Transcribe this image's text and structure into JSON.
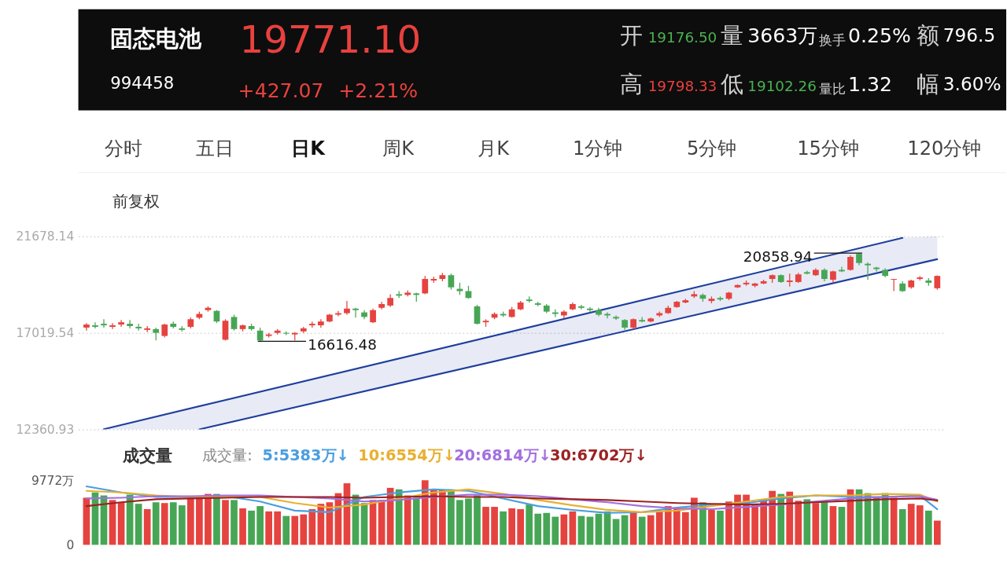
{
  "chart_data": [
    {
      "type": "candlestick",
      "title": "固态电池",
      "subtitle": "994458",
      "categories": [
        null,
        null,
        null,
        null,
        null,
        null,
        null,
        null,
        null,
        null,
        null,
        null,
        null,
        null,
        null,
        null,
        null,
        null,
        null,
        null,
        null,
        null,
        null,
        null,
        null,
        null,
        null,
        null,
        null,
        null,
        null,
        null,
        null,
        null,
        null,
        null,
        null,
        null,
        null,
        null,
        null,
        null,
        null,
        null,
        null,
        null,
        null,
        null,
        null,
        null,
        null,
        null,
        null,
        null,
        null,
        null,
        null,
        null,
        null,
        null,
        null,
        null,
        null,
        null,
        null,
        null,
        null,
        null,
        null,
        null,
        null,
        null,
        null,
        null,
        null,
        null,
        null,
        null,
        null,
        null,
        null,
        null,
        null,
        null,
        null,
        null,
        null,
        null,
        null,
        null,
        null,
        null,
        null,
        null,
        null,
        null,
        null,
        null,
        null
      ],
      "ohlc": [
        [
          17276,
          17496,
          17130,
          17423
        ],
        [
          17386,
          17533,
          17240,
          17313
        ],
        [
          17460,
          17680,
          17276,
          17386
        ],
        [
          17313,
          17496,
          17203,
          17386
        ],
        [
          17423,
          17643,
          17313,
          17533
        ],
        [
          17460,
          17643,
          17240,
          17350
        ],
        [
          17313,
          17460,
          17130,
          17240
        ],
        [
          17166,
          17350,
          17056,
          17240
        ],
        [
          17203,
          17276,
          16653,
          17020
        ],
        [
          16873,
          17460,
          16799,
          17423
        ],
        [
          17460,
          17570,
          17240,
          17313
        ],
        [
          17240,
          17350,
          17093,
          17166
        ],
        [
          17313,
          17753,
          17240,
          17680
        ],
        [
          17753,
          18047,
          17680,
          17936
        ],
        [
          18120,
          18303,
          18047,
          18230
        ],
        [
          18083,
          18120,
          17496,
          17570
        ],
        [
          16689,
          17680,
          16653,
          17606
        ],
        [
          17790,
          17900,
          17130,
          17203
        ],
        [
          17203,
          17423,
          17093,
          17386
        ],
        [
          17350,
          17460,
          17130,
          17203
        ],
        [
          17130,
          17276,
          16616.48,
          16653
        ],
        [
          16873,
          17020,
          16799,
          16946
        ],
        [
          17020,
          17203,
          16946,
          17130
        ],
        [
          17020,
          17093,
          16909,
          16983
        ],
        [
          16946,
          17056,
          16653,
          17020
        ],
        [
          17093,
          17313,
          17020,
          17240
        ],
        [
          17386,
          17570,
          17276,
          17460
        ],
        [
          17386,
          17680,
          17276,
          17570
        ],
        [
          17570,
          17936,
          17533,
          17900
        ],
        [
          17900,
          18083,
          17826,
          17973
        ],
        [
          17973,
          18560,
          17900,
          18193
        ],
        [
          18193,
          18230,
          17753,
          18120
        ],
        [
          18010,
          18120,
          17680,
          17790
        ],
        [
          17533,
          18193,
          17496,
          18120
        ],
        [
          18230,
          18523,
          18157,
          18413
        ],
        [
          18340,
          18890,
          18267,
          18707
        ],
        [
          18890,
          19037,
          18707,
          18817
        ],
        [
          18853,
          19074,
          18780,
          18964
        ],
        [
          18927,
          18964,
          18523,
          18853
        ],
        [
          18927,
          19771,
          18890,
          19624
        ],
        [
          19550,
          19734,
          19440,
          19624
        ],
        [
          19624,
          19917,
          19514,
          19807
        ],
        [
          19807,
          19881,
          19110,
          19220
        ],
        [
          19147,
          19440,
          18853,
          19037
        ],
        [
          19037,
          19294,
          18670,
          18707
        ],
        [
          18303,
          18377,
          17423,
          17460
        ],
        [
          17533,
          17680,
          17313,
          17606
        ],
        [
          17753,
          18010,
          17680,
          17936
        ],
        [
          17936,
          18047,
          17790,
          17863
        ],
        [
          17790,
          18267,
          17753,
          18157
        ],
        [
          18157,
          18560,
          18120,
          18487
        ],
        [
          18633,
          18780,
          18487,
          18560
        ],
        [
          18450,
          18523,
          18303,
          18377
        ],
        [
          18340,
          18413,
          17973,
          18047
        ],
        [
          18010,
          18157,
          17790,
          17936
        ],
        [
          17863,
          18120,
          17716,
          18047
        ],
        [
          18157,
          18487,
          18120,
          18413
        ],
        [
          18303,
          18377,
          18157,
          18230
        ],
        [
          18193,
          18267,
          18010,
          18120
        ],
        [
          18120,
          18230,
          17826,
          17900
        ],
        [
          17936,
          18010,
          17716,
          17863
        ],
        [
          17790,
          17863,
          17643,
          17716
        ],
        [
          17643,
          17680,
          17166,
          17276
        ],
        [
          17276,
          17716,
          17203,
          17680
        ],
        [
          17643,
          17790,
          17533,
          17570
        ],
        [
          17570,
          17753,
          17533,
          17716
        ],
        [
          17863,
          18047,
          17790,
          17973
        ],
        [
          17973,
          18340,
          17936,
          18230
        ],
        [
          18267,
          18560,
          18230,
          18523
        ],
        [
          18487,
          18670,
          18450,
          18597
        ],
        [
          18780,
          19037,
          18707,
          18890
        ],
        [
          18853,
          18927,
          18523,
          18670
        ],
        [
          18560,
          18780,
          18450,
          18670
        ],
        [
          18707,
          18780,
          18560,
          18633
        ],
        [
          18670,
          19000,
          18597,
          18964
        ],
        [
          19220,
          19367,
          19184,
          19330
        ],
        [
          19367,
          19550,
          19294,
          19440
        ],
        [
          19294,
          19440,
          19220,
          19404
        ],
        [
          19404,
          19587,
          19367,
          19514
        ],
        [
          19624,
          19844,
          19440,
          19807
        ],
        [
          19807,
          19844,
          19440,
          19477
        ],
        [
          19477,
          19881,
          19257,
          19550
        ],
        [
          19477,
          19917,
          19440,
          19844
        ],
        [
          19954,
          20028,
          19844,
          19881
        ],
        [
          19807,
          20138,
          19771,
          20064
        ],
        [
          20064,
          20138,
          19514,
          19624
        ],
        [
          19587,
          20028,
          19440,
          19991
        ],
        [
          20064,
          20211,
          19954,
          19991
        ],
        [
          20064,
          20761,
          20028,
          20688
        ],
        [
          20834,
          20858.94,
          20284,
          20394
        ],
        [
          20358,
          20431,
          19587,
          20284
        ],
        [
          20174,
          20211,
          19991,
          20101
        ],
        [
          20064,
          20138,
          19697,
          19771
        ],
        [
          19587,
          19624,
          19037,
          19624
        ],
        [
          19404,
          19514,
          19000,
          19037
        ],
        [
          19220,
          19587,
          19147,
          19550
        ],
        [
          19624,
          19771,
          19550,
          19697
        ],
        [
          19550,
          19661,
          19294,
          19440
        ],
        [
          19176.5,
          19798.33,
          19102.26,
          19771.1
        ]
      ],
      "colors": [
        "#e5433f",
        "#47a655",
        "#47a655",
        "#e5433f",
        "#e5433f",
        "#47a655",
        "#47a655",
        "#e5433f",
        "#47a655",
        "#e5433f",
        "#47a655",
        "#47a655",
        "#e5433f",
        "#e5433f",
        "#e5433f",
        "#47a655",
        "#e5433f",
        "#47a655",
        "#e5433f",
        "#47a655",
        "#47a655",
        "#e5433f",
        "#e5433f",
        "#47a655",
        "#e5433f",
        "#e5433f",
        "#e5433f",
        "#e5433f",
        "#e5433f",
        "#e5433f",
        "#e5433f",
        "#47a655",
        "#47a655",
        "#e5433f",
        "#e5433f",
        "#e5433f",
        "#47a655",
        "#e5433f",
        "#47a655",
        "#e5433f",
        "#e5433f",
        "#e5433f",
        "#47a655",
        "#47a655",
        "#47a655",
        "#47a655",
        "#e5433f",
        "#e5433f",
        "#47a655",
        "#e5433f",
        "#e5433f",
        "#47a655",
        "#47a655",
        "#47a655",
        "#47a655",
        "#e5433f",
        "#e5433f",
        "#47a655",
        "#47a655",
        "#47a655",
        "#47a655",
        "#47a655",
        "#47a655",
        "#e5433f",
        "#47a655",
        "#e5433f",
        "#e5433f",
        "#e5433f",
        "#e5433f",
        "#e5433f",
        "#e5433f",
        "#47a655",
        "#e5433f",
        "#47a655",
        "#e5433f",
        "#e5433f",
        "#e5433f",
        "#e5433f",
        "#e5433f",
        "#e5433f",
        "#47a655",
        "#e5433f",
        "#e5433f",
        "#47a655",
        "#e5433f",
        "#47a655",
        "#e5433f",
        "#47a655",
        "#e5433f",
        "#47a655",
        "#47a655",
        "#47a655",
        "#47a655",
        "#e5433f",
        "#47a655",
        "#e5433f",
        "#e5433f",
        "#47a655",
        "#e5433f"
      ],
      "ylim": [
        12360.93,
        21678.14
      ],
      "yticks": [
        21678.14,
        17019.54,
        12360.93
      ],
      "grid": "y",
      "tick_labels": "y",
      "series": [
        {
          "type": "line",
          "color": "#1f3f9e",
          "values": [
            null,
            null,
            12371,
            null,
            null,
            null,
            null,
            null,
            null,
            null,
            null,
            null,
            null,
            null,
            null,
            null,
            null,
            null,
            null,
            null,
            null,
            null,
            null,
            null,
            null,
            null,
            null,
            null,
            null,
            null,
            null,
            null,
            null,
            null,
            null,
            null,
            null,
            null,
            null,
            null,
            null,
            null,
            null,
            null,
            null,
            null,
            null,
            null,
            null,
            null,
            null,
            null,
            null,
            null,
            null,
            null,
            null,
            null,
            null,
            null,
            null,
            null,
            null,
            null,
            null,
            null,
            null,
            null,
            null,
            null,
            null,
            null,
            null,
            null,
            null,
            null,
            null,
            null,
            null,
            null,
            null,
            null,
            null,
            null,
            null,
            null,
            null,
            null,
            null,
            null,
            null,
            null,
            null,
            null,
            21608,
            null,
            null,
            null,
            null
          ]
        },
        {
          "type": "line",
          "color": "#1f3f9e",
          "upper": [
            null,
            null,
            12371,
            null,
            null,
            null,
            null,
            null,
            null,
            null,
            null,
            null,
            null,
            13475,
            null,
            null,
            null,
            null,
            null,
            null,
            null,
            null,
            null,
            null,
            null,
            null,
            null,
            null,
            null,
            null,
            null,
            null,
            null,
            null,
            null,
            null,
            null,
            null,
            null,
            null,
            null,
            null,
            null,
            null,
            null,
            null,
            null,
            null,
            null,
            null,
            null,
            null,
            null,
            null,
            null,
            null,
            null,
            null,
            null,
            null,
            null,
            null,
            null,
            null,
            null,
            null,
            null,
            null,
            null,
            null,
            null,
            null,
            null,
            null,
            null,
            null,
            null,
            null,
            null,
            null,
            null,
            null,
            null,
            null,
            null,
            null,
            null,
            null,
            null,
            null,
            null,
            null,
            null,
            null,
            21608,
            null,
            null,
            null,
            21678
          ],
          "lower": [
            null,
            null,
            12361,
            null,
            null,
            null,
            null,
            null,
            null,
            null,
            null,
            null,
            null,
            12361,
            null,
            null,
            null,
            null,
            null,
            null,
            null,
            null,
            null,
            null,
            null,
            null,
            null,
            null,
            null,
            null,
            null,
            null,
            null,
            null,
            null,
            null,
            null,
            null,
            null,
            null,
            null,
            null,
            null,
            null,
            null,
            null,
            null,
            null,
            null,
            null,
            null,
            null,
            null,
            null,
            null,
            null,
            null,
            null,
            null,
            null,
            null,
            null,
            null,
            null,
            null,
            null,
            null,
            null,
            null,
            null,
            null,
            null,
            null,
            null,
            null,
            null,
            null,
            null,
            null,
            null,
            null,
            null,
            null,
            null,
            null,
            null,
            null,
            null,
            null,
            null,
            null,
            null,
            null,
            null,
            20183,
            null,
            null,
            null,
            20579
          ],
          "values": [
            null,
            null,
            null,
            null,
            null,
            null,
            null,
            null,
            null,
            null,
            null,
            null,
            null,
            12361,
            null,
            null,
            null,
            null,
            null,
            null,
            null,
            null,
            null,
            null,
            null,
            null,
            null,
            null,
            null,
            null,
            null,
            null,
            null,
            null,
            null,
            null,
            null,
            null,
            null,
            null,
            null,
            null,
            null,
            null,
            null,
            null,
            null,
            null,
            null,
            null,
            null,
            null,
            null,
            null,
            null,
            null,
            null,
            null,
            null,
            null,
            null,
            null,
            null,
            null,
            null,
            null,
            null,
            null,
            null,
            null,
            null,
            null,
            null,
            null,
            null,
            null,
            null,
            null,
            null,
            null,
            null,
            null,
            null,
            null,
            null,
            null,
            null,
            null,
            null,
            null,
            null,
            null,
            null,
            null,
            null,
            null,
            null,
            null,
            20579
          ]
        }
      ],
      "annotations": [
        "19771.10",
        "+427.07",
        "+2.21%",
        "开",
        "19176.50",
        "量",
        "3663万",
        "换手",
        "0.25%",
        "额",
        "796.5",
        "高",
        "19798.33",
        "低",
        "19102.26",
        "量比",
        "1.32",
        "幅",
        "3.60%",
        "分时",
        "五日",
        "日K",
        "周K",
        "月K",
        "1分钟",
        "5分钟",
        "15分钟",
        "120分钟",
        "前复权",
        "16616.48",
        "20858.94"
      ]
    },
    {
      "type": "bar",
      "title": "成交量",
      "legend_title": "成交量:",
      "legend": "top",
      "tick_labels": "y",
      "categories": [
        null,
        null,
        null,
        null,
        null,
        null,
        null,
        null,
        null,
        null,
        null,
        null,
        null,
        null,
        null,
        null,
        null,
        null,
        null,
        null,
        null,
        null,
        null,
        null,
        null,
        null,
        null,
        null,
        null,
        null,
        null,
        null,
        null,
        null,
        null,
        null,
        null,
        null,
        null,
        null,
        null,
        null,
        null,
        null,
        null,
        null,
        null,
        null,
        null,
        null,
        null,
        null,
        null,
        null,
        null,
        null,
        null,
        null,
        null,
        null,
        null,
        null,
        null,
        null,
        null,
        null,
        null,
        null,
        null,
        null,
        null,
        null,
        null,
        null,
        null,
        null,
        null,
        null,
        null,
        null,
        null,
        null,
        null,
        null,
        null,
        null,
        null,
        null,
        null,
        null,
        null,
        null,
        null,
        null,
        null,
        null,
        null,
        null,
        null
      ],
      "values": [
        7130,
        7935,
        7475,
        6785,
        6440,
        7590,
        6210,
        5405,
        6440,
        6325,
        6440,
        5980,
        7130,
        7360,
        7705,
        7705,
        6785,
        6785,
        5520,
        5175,
        5865,
        5060,
        5060,
        4370,
        4370,
        4600,
        5405,
        6210,
        6440,
        7820,
        9315,
        7590,
        6325,
        6785,
        6785,
        8625,
        8395,
        7475,
        7130,
        9772,
        8280,
        8280,
        8395,
        6785,
        7015,
        7475,
        5750,
        5750,
        5060,
        5520,
        5405,
        6095,
        4715,
        4830,
        4255,
        4600,
        5060,
        4370,
        4255,
        4715,
        5060,
        3910,
        4485,
        5060,
        4255,
        4485,
        5060,
        5865,
        5635,
        4945,
        7130,
        6440,
        5290,
        5175,
        6555,
        7590,
        7590,
        6210,
        6900,
        8165,
        7705,
        8050,
        6670,
        6900,
        6325,
        6440,
        5865,
        5750,
        8395,
        8395,
        7820,
        7130,
        7820,
        7130,
        5405,
        6210,
        5980,
        5175,
        3663
      ],
      "colors": [
        "#e5433f",
        "#47a655",
        "#47a655",
        "#e5433f",
        "#e5433f",
        "#47a655",
        "#47a655",
        "#e5433f",
        "#47a655",
        "#e5433f",
        "#47a655",
        "#47a655",
        "#e5433f",
        "#e5433f",
        "#e5433f",
        "#47a655",
        "#e5433f",
        "#47a655",
        "#e5433f",
        "#47a655",
        "#47a655",
        "#e5433f",
        "#e5433f",
        "#47a655",
        "#e5433f",
        "#e5433f",
        "#e5433f",
        "#e5433f",
        "#e5433f",
        "#e5433f",
        "#e5433f",
        "#47a655",
        "#47a655",
        "#e5433f",
        "#e5433f",
        "#e5433f",
        "#47a655",
        "#e5433f",
        "#47a655",
        "#e5433f",
        "#e5433f",
        "#e5433f",
        "#47a655",
        "#47a655",
        "#47a655",
        "#47a655",
        "#e5433f",
        "#e5433f",
        "#47a655",
        "#e5433f",
        "#e5433f",
        "#47a655",
        "#47a655",
        "#47a655",
        "#47a655",
        "#e5433f",
        "#e5433f",
        "#47a655",
        "#47a655",
        "#47a655",
        "#47a655",
        "#47a655",
        "#47a655",
        "#e5433f",
        "#47a655",
        "#e5433f",
        "#e5433f",
        "#e5433f",
        "#e5433f",
        "#e5433f",
        "#e5433f",
        "#47a655",
        "#e5433f",
        "#47a655",
        "#e5433f",
        "#e5433f",
        "#e5433f",
        "#e5433f",
        "#e5433f",
        "#e5433f",
        "#47a655",
        "#e5433f",
        "#e5433f",
        "#47a655",
        "#e5433f",
        "#47a655",
        "#e5433f",
        "#47a655",
        "#e5433f",
        "#47a655",
        "#47a655",
        "#47a655",
        "#47a655",
        "#e5433f",
        "#47a655",
        "#e5433f",
        "#e5433f",
        "#47a655",
        "#e5433f"
      ],
      "ylim": [
        0,
        9772
      ],
      "yticks": [
        {
          "value": 9772,
          "label": "9772万"
        },
        0
      ],
      "series": [
        {
          "type": "line",
          "name": "5:5383万↓",
          "color": "#4a9ee0",
          "values": [
            8855,
            null,
            null,
            null,
            7935,
            null,
            null,
            null,
            7245,
            null,
            null,
            null,
            7245,
            null,
            null,
            null,
            7360,
            null,
            null,
            null,
            6555,
            null,
            null,
            null,
            5175,
            null,
            null,
            null,
            4945,
            null,
            null,
            null,
            7245,
            null,
            null,
            null,
            7935,
            null,
            null,
            null,
            8395,
            null,
            null,
            null,
            8165,
            null,
            null,
            null,
            7015,
            null,
            null,
            null,
            5865,
            null,
            null,
            null,
            5290,
            null,
            null,
            null,
            4830,
            null,
            null,
            null,
            4945,
            null,
            null,
            null,
            5635,
            null,
            null,
            null,
            6095,
            null,
            null,
            null,
            6325,
            null,
            null,
            null,
            7015,
            null,
            null,
            null,
            7475,
            null,
            null,
            null,
            7245,
            null,
            null,
            null,
            7245,
            null,
            null,
            null,
            7475,
            null,
            5383
          ]
        },
        {
          "type": "line",
          "name": "10:6554万↓",
          "color": "#e8b030",
          "values": [
            8165,
            null,
            null,
            null,
            7935,
            null,
            null,
            null,
            7475,
            null,
            null,
            null,
            7245,
            null,
            null,
            null,
            7360,
            null,
            null,
            null,
            7245,
            null,
            null,
            null,
            6325,
            null,
            null,
            null,
            5635,
            null,
            null,
            null,
            6095,
            null,
            null,
            null,
            7015,
            null,
            null,
            null,
            7935,
            null,
            null,
            null,
            8395,
            null,
            null,
            null,
            7705,
            null,
            null,
            null,
            6785,
            null,
            null,
            null,
            5980,
            null,
            null,
            null,
            5290,
            null,
            null,
            null,
            4945,
            null,
            null,
            null,
            5175,
            null,
            null,
            null,
            5865,
            null,
            null,
            null,
            6555,
            null,
            null,
            null,
            7245,
            null,
            null,
            null,
            7475,
            null,
            null,
            null,
            7475,
            null,
            null,
            null,
            7705,
            null,
            null,
            null,
            7590,
            null,
            6554
          ]
        },
        {
          "type": "line",
          "name": "20:6814万↓",
          "color": "#a36fe0",
          "values": [
            7015,
            null,
            null,
            null,
            7130,
            null,
            null,
            null,
            7360,
            null,
            null,
            null,
            7360,
            null,
            null,
            null,
            7475,
            null,
            null,
            null,
            7475,
            null,
            null,
            null,
            7245,
            null,
            null,
            null,
            7015,
            null,
            null,
            null,
            6555,
            null,
            null,
            null,
            6785,
            null,
            null,
            null,
            7245,
            null,
            null,
            null,
            7590,
            null,
            null,
            null,
            7590,
            null,
            null,
            null,
            7360,
            null,
            null,
            null,
            6900,
            null,
            null,
            null,
            6440,
            null,
            null,
            null,
            5865,
            null,
            null,
            null,
            5520,
            null,
            null,
            null,
            5405,
            null,
            null,
            null,
            5750,
            null,
            null,
            null,
            6095,
            null,
            null,
            null,
            6555,
            null,
            null,
            null,
            7015,
            null,
            null,
            null,
            7245,
            null,
            null,
            null,
            7360,
            null,
            6814
          ]
        },
        {
          "type": "line",
          "name": "30:6702万↓",
          "color": "#9b2222",
          "values": [
            5865,
            null,
            null,
            null,
            6440,
            null,
            null,
            null,
            6900,
            null,
            null,
            null,
            7015,
            null,
            null,
            null,
            7130,
            null,
            null,
            null,
            7245,
            null,
            null,
            null,
            7245,
            null,
            null,
            null,
            7245,
            null,
            null,
            null,
            7130,
            null,
            null,
            null,
            7245,
            null,
            null,
            null,
            7360,
            null,
            null,
            null,
            7245,
            null,
            null,
            null,
            7245,
            null,
            null,
            null,
            7015,
            null,
            null,
            null,
            6900,
            null,
            null,
            null,
            6785,
            null,
            null,
            null,
            6555,
            null,
            null,
            null,
            6325,
            null,
            null,
            null,
            6210,
            null,
            null,
            null,
            6095,
            null,
            null,
            null,
            6210,
            null,
            null,
            null,
            6440,
            null,
            null,
            null,
            6670,
            null,
            null,
            null,
            6900,
            null,
            null,
            null,
            7015,
            null,
            6702
          ]
        }
      ]
    }
  ]
}
